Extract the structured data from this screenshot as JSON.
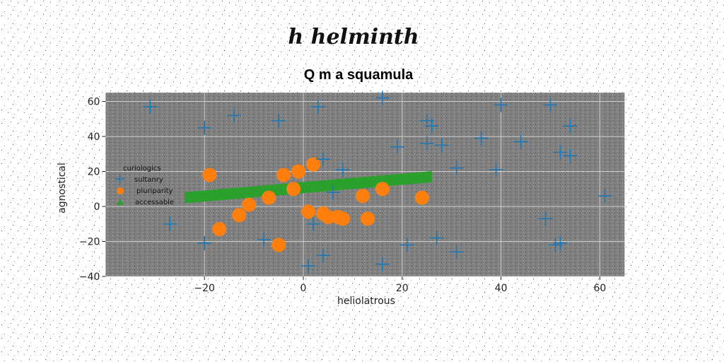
{
  "chart_data": {
    "type": "scatter",
    "suptitle": "h helminth",
    "title": "Q m a squamula",
    "xlabel": "heliolatrous",
    "ylabel": "agnostical",
    "xlim": [
      -40,
      65
    ],
    "ylim": [
      -40,
      65
    ],
    "xticks": [
      -20,
      0,
      20,
      40,
      60
    ],
    "yticks": [
      -40,
      -20,
      0,
      20,
      40,
      60
    ],
    "grid": true,
    "legend": {
      "title": "curiologics",
      "placement": "center-left"
    },
    "colors": {
      "axes_bg": "#808080",
      "grid": "#d0d0d0",
      "sultanry": "#1f77b4",
      "pluriparity": "#ff7f0e",
      "accessable": "#2ca02c"
    },
    "series": [
      {
        "name": "sultanry",
        "marker": "plus",
        "points": [
          [
            -31,
            57
          ],
          [
            -14,
            52
          ],
          [
            -20,
            45
          ],
          [
            -5,
            49
          ],
          [
            3,
            57
          ],
          [
            16,
            62
          ],
          [
            25,
            49
          ],
          [
            26,
            46
          ],
          [
            19,
            34
          ],
          [
            25,
            36
          ],
          [
            28,
            35
          ],
          [
            36,
            39
          ],
          [
            40,
            58
          ],
          [
            44,
            37
          ],
          [
            50,
            58
          ],
          [
            52,
            31
          ],
          [
            54,
            46
          ],
          [
            54,
            29
          ],
          [
            31,
            22
          ],
          [
            39,
            21
          ],
          [
            4,
            27
          ],
          [
            8,
            21
          ],
          [
            6,
            8
          ],
          [
            2,
            -10
          ],
          [
            -27,
            -10
          ],
          [
            -20,
            -21
          ],
          [
            -8,
            -19
          ],
          [
            21,
            -22
          ],
          [
            27,
            -18
          ],
          [
            31,
            -26
          ],
          [
            49,
            -7
          ],
          [
            51,
            -22
          ],
          [
            52,
            -21
          ],
          [
            61,
            6
          ],
          [
            4,
            -28
          ],
          [
            1,
            -34
          ],
          [
            16,
            -33
          ]
        ]
      },
      {
        "name": "pluriparity",
        "marker": "circle",
        "points": [
          [
            -19,
            18
          ],
          [
            -4,
            18
          ],
          [
            -1,
            20
          ],
          [
            2,
            24
          ],
          [
            -2,
            10
          ],
          [
            -7,
            5
          ],
          [
            -11,
            1
          ],
          [
            -13,
            -5
          ],
          [
            -17,
            -13
          ],
          [
            -5,
            -22
          ],
          [
            1,
            -3
          ],
          [
            4,
            -4
          ],
          [
            5,
            -6
          ],
          [
            7,
            -6
          ],
          [
            8,
            -7
          ],
          [
            13,
            -7
          ],
          [
            12,
            6
          ],
          [
            16,
            10
          ],
          [
            24,
            5
          ]
        ]
      },
      {
        "name": "accessable",
        "marker": "triangle",
        "line": {
          "x1": -24,
          "y1": 5,
          "x2": 26,
          "y2": 17
        }
      }
    ]
  }
}
